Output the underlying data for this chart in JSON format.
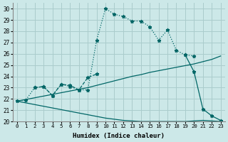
{
  "xlabel": "Humidex (Indice chaleur)",
  "bg_color": "#cce8e8",
  "grid_color": "#aacccc",
  "line_color": "#006666",
  "xlim": [
    -0.5,
    23.5
  ],
  "ylim": [
    20,
    30.5
  ],
  "yticks": [
    20,
    21,
    22,
    23,
    24,
    25,
    26,
    27,
    28,
    29,
    30
  ],
  "xticks": [
    0,
    1,
    2,
    3,
    4,
    5,
    6,
    7,
    8,
    9,
    10,
    11,
    12,
    13,
    14,
    15,
    16,
    17,
    18,
    19,
    20,
    21,
    22,
    23
  ],
  "curve1_x": [
    0,
    1,
    2,
    3,
    4,
    5,
    6,
    7,
    8,
    9,
    10,
    11,
    12,
    13,
    14,
    15,
    16,
    17,
    18,
    19,
    20
  ],
  "curve1_y": [
    21.8,
    21.9,
    23.0,
    23.1,
    22.3,
    23.3,
    23.1,
    22.8,
    22.8,
    27.2,
    30.0,
    29.5,
    29.3,
    28.9,
    28.9,
    28.4,
    27.2,
    28.1,
    26.3,
    25.9,
    25.8
  ],
  "curve2_x": [
    2,
    3,
    4,
    5,
    6,
    7,
    8,
    9
  ],
  "curve2_y": [
    23.0,
    23.1,
    22.3,
    23.3,
    23.2,
    22.8,
    23.9,
    24.2
  ],
  "line_up_x": [
    0,
    1,
    2,
    3,
    4,
    5,
    6,
    7,
    8,
    9,
    10,
    11,
    12,
    13,
    14,
    15,
    16,
    17,
    18,
    19,
    20,
    21,
    22,
    23
  ],
  "line_up_y": [
    21.8,
    21.95,
    22.1,
    22.25,
    22.4,
    22.55,
    22.7,
    22.85,
    23.0,
    23.2,
    23.4,
    23.6,
    23.8,
    24.0,
    24.15,
    24.35,
    24.5,
    24.65,
    24.8,
    24.95,
    25.1,
    25.3,
    25.5,
    25.8
  ],
  "line_down_x": [
    0,
    1,
    2,
    3,
    4,
    5,
    6,
    7,
    8,
    9,
    10,
    11,
    12,
    13,
    14,
    15,
    16,
    17,
    18,
    19,
    20,
    21,
    22,
    23
  ],
  "line_down_y": [
    21.8,
    21.65,
    21.5,
    21.35,
    21.2,
    21.05,
    20.9,
    20.75,
    20.6,
    20.45,
    20.3,
    20.2,
    20.1,
    20.05,
    20.0,
    20.0,
    20.0,
    20.0,
    20.0,
    20.0,
    20.05,
    20.1,
    20.05,
    20.0
  ],
  "curve3_x": [
    19,
    20,
    21,
    22,
    23
  ],
  "curve3_y": [
    25.9,
    24.4,
    21.1,
    20.5,
    20.1
  ]
}
